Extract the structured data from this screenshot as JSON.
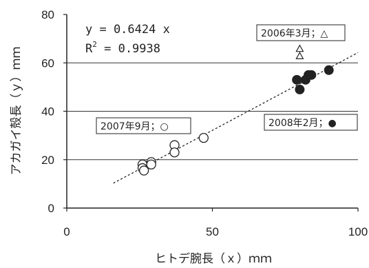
{
  "chart_data": {
    "type": "scatter",
    "xlabel": "ヒトデ腕長（ｘ）ｍｍ",
    "ylabel": "アカガイ殻長（ｙ）ｍｍ",
    "xlim": [
      0,
      100
    ],
    "ylim": [
      0,
      80
    ],
    "x_ticks": [
      "0",
      "50",
      "100"
    ],
    "y_ticks": [
      "0",
      "20",
      "40",
      "60",
      "80"
    ],
    "grid": "horizontal",
    "equation": "y = 0.6424 x",
    "r2_label": "R",
    "r2_sup": "2",
    "r2_value": " = 0.9938",
    "trendline": {
      "slope": 0.6424,
      "x_range": [
        16,
        100
      ]
    },
    "series": [
      {
        "name": "2007年9月；○",
        "marker": "open-circle",
        "points": [
          [
            26,
            18
          ],
          [
            26,
            16.5
          ],
          [
            26.5,
            15.5
          ],
          [
            29,
            19
          ],
          [
            29,
            18
          ],
          [
            37,
            26
          ],
          [
            37,
            23
          ],
          [
            47,
            29
          ]
        ]
      },
      {
        "name": "2006年3月；△",
        "marker": "open-triangle",
        "points": [
          [
            80,
            66
          ],
          [
            80,
            63
          ],
          [
            80,
            53
          ]
        ]
      },
      {
        "name": "2008年2月；●",
        "marker": "filled-circle",
        "points": [
          [
            79,
            53
          ],
          [
            80,
            49
          ],
          [
            82,
            53
          ],
          [
            83,
            55
          ],
          [
            84,
            55
          ],
          [
            90,
            57
          ]
        ]
      }
    ]
  }
}
